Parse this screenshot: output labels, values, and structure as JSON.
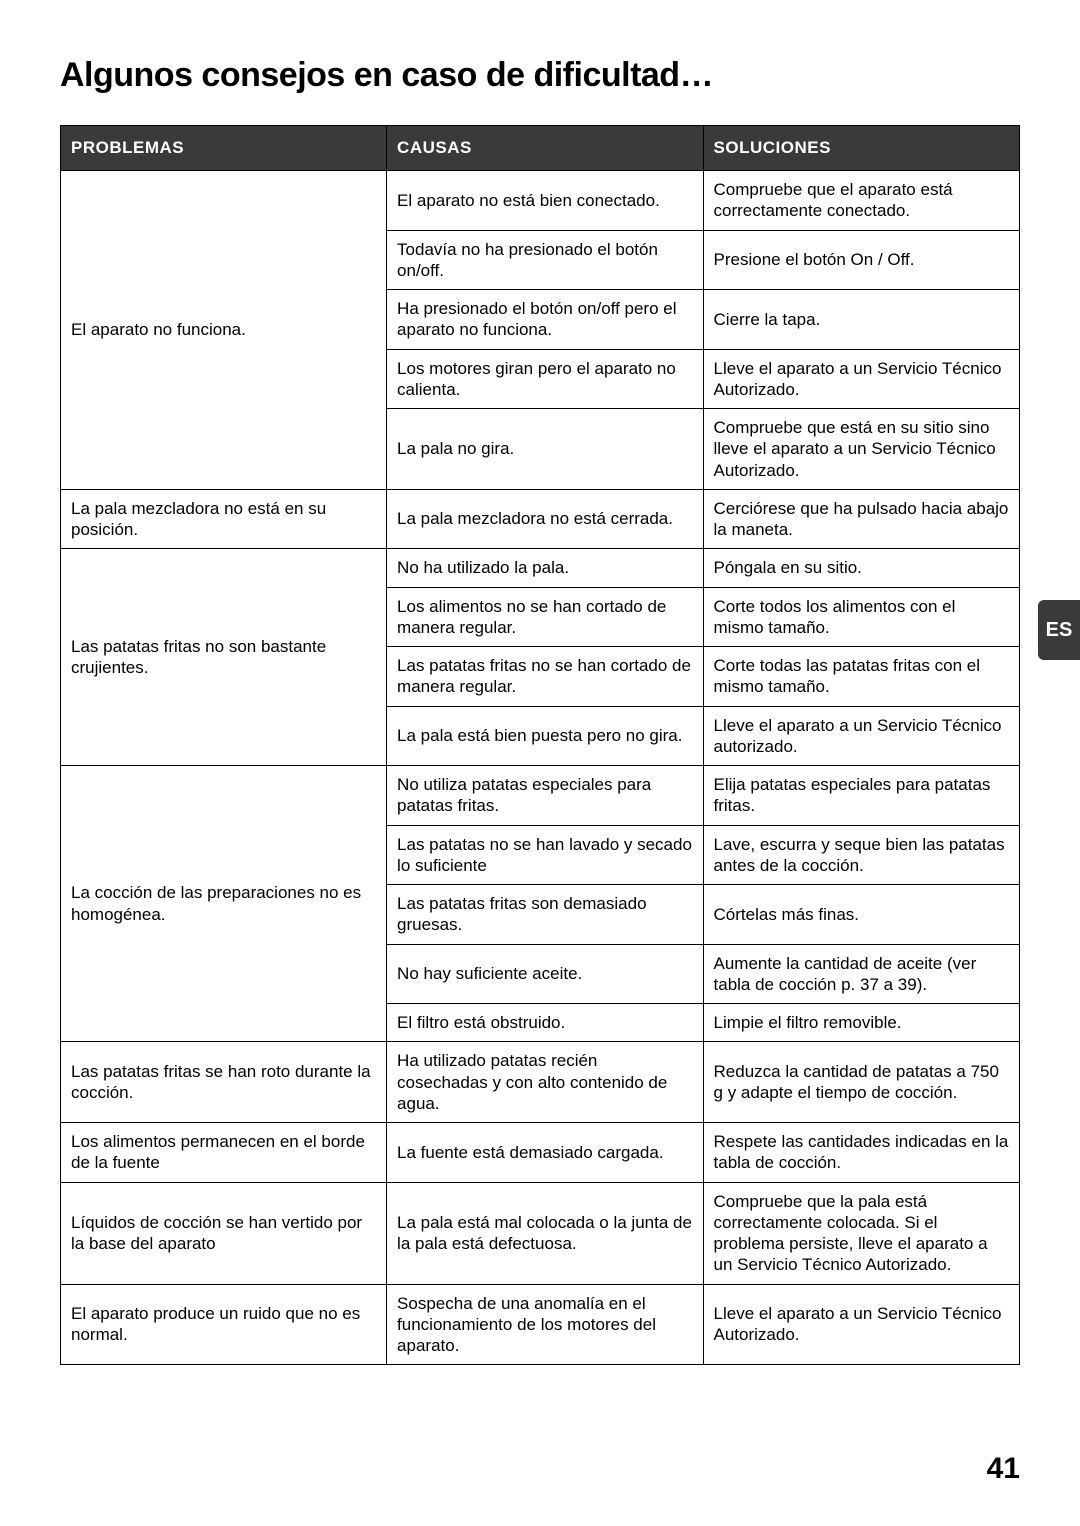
{
  "title": "Algunos consejos en caso de dificultad…",
  "columns": {
    "problem": "PROBLEMAS",
    "cause": "CAUSAS",
    "solution": "SOLUCIONES"
  },
  "colors": {
    "header_bg": "#3a3a3a",
    "header_text": "#ffffff",
    "border": "#000000",
    "text": "#000000",
    "page_bg": "#ffffff"
  },
  "side_tab": "ES",
  "page_number": "41",
  "groups": [
    {
      "problem": "El aparato no funciona.",
      "rows": [
        {
          "cause": "El aparato no está bien conectado.",
          "solution": "Compruebe que el aparato está correctamente conectado."
        },
        {
          "cause": "Todavía no ha presionado el botón on/off.",
          "solution": "Presione el botón On / Off."
        },
        {
          "cause": "Ha presionado el botón on/off pero el aparato no funciona.",
          "solution": "Cierre la tapa."
        },
        {
          "cause": "Los motores giran pero el aparato no calienta.",
          "solution": "Lleve el aparato a un Servicio Técnico Autorizado."
        },
        {
          "cause": "La pala no gira.",
          "solution": "Compruebe que está en su sitio sino lleve el aparato a un Servicio Técnico Autorizado."
        }
      ]
    },
    {
      "problem": "La  pala mezcladora no está en su posición.",
      "rows": [
        {
          "cause": "La pala mezcladora no está cerrada.",
          "solution": "Cerciórese que ha pulsado hacia abajo la maneta."
        }
      ]
    },
    {
      "problem": "Las patatas fritas no son bastante crujientes.",
      "rows": [
        {
          "cause": "No ha utilizado la pala.",
          "solution": "Póngala en su sitio."
        },
        {
          "cause": "Los alimentos no se han cortado de manera regular.",
          "solution": "Corte todos los alimentos con el mismo tamaño."
        },
        {
          "cause": "Las patatas fritas no se han cortado de manera regular.",
          "solution": "Corte todas las patatas fritas con el mismo tamaño."
        },
        {
          "cause": "La pala está bien puesta pero no gira.",
          "solution": "Lleve el aparato a un Servicio Técnico autorizado."
        }
      ]
    },
    {
      "problem": "La cocción de las preparaciones no es homogénea.",
      "rows": [
        {
          "cause": "No utiliza patatas especiales para patatas fritas.",
          "solution": "Elija patatas especiales para patatas fritas."
        },
        {
          "cause": "Las patatas no se han lavado y secado lo suficiente",
          "solution": "Lave, escurra y seque bien las patatas antes de la cocción."
        },
        {
          "cause": "Las patatas fritas son demasiado gruesas.",
          "solution": "Córtelas más finas."
        },
        {
          "cause": "No hay suficiente aceite.",
          "solution": "Aumente la cantidad de aceite (ver tabla de cocción p. 37 a 39)."
        },
        {
          "cause": "El filtro está obstruido.",
          "solution": "Limpie el filtro removible."
        }
      ]
    },
    {
      "problem": "Las patatas fritas se han roto durante la cocción.",
      "rows": [
        {
          "cause": "Ha utilizado patatas recién cosechadas y con alto contenido de agua.",
          "solution": "Reduzca la cantidad de patatas a 750 g y adapte el tiempo de cocción."
        }
      ]
    },
    {
      "problem": "Los alimentos permanecen en el borde de la fuente",
      "rows": [
        {
          "cause": "La fuente está demasiado cargada.",
          "solution": "Respete las cantidades indicadas en la tabla de cocción."
        }
      ]
    },
    {
      "problem": "Líquidos de cocción se han vertido por la base del aparato",
      "rows": [
        {
          "cause": "La pala está mal colocada o la junta de la pala está defectuosa.",
          "solution": "Compruebe que la pala está correctamente colocada. Si el problema persiste, lleve el aparato a un Servicio Técnico Autorizado."
        }
      ]
    },
    {
      "problem": "El aparato produce un ruido que no es normal.",
      "rows": [
        {
          "cause": "Sospecha de una anomalía en el funcionamiento de los motores del aparato.",
          "solution": "Lleve el aparato a un Servicio Técnico Autorizado."
        }
      ]
    }
  ]
}
